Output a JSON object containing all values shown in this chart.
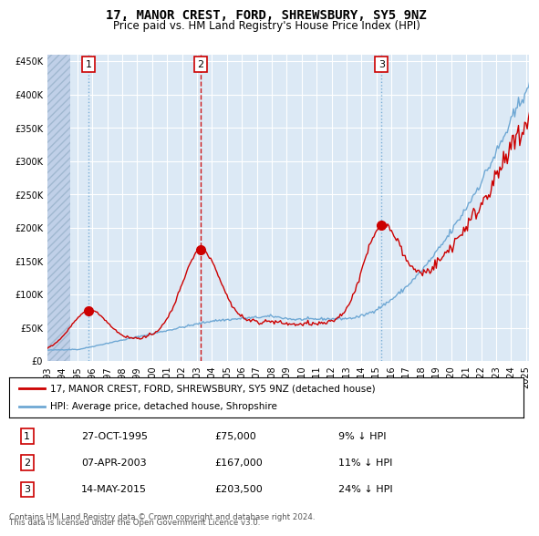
{
  "title": "17, MANOR CREST, FORD, SHREWSBURY, SY5 9NZ",
  "subtitle": "Price paid vs. HM Land Registry's House Price Index (HPI)",
  "sale_dates": [
    "1995-10-27",
    "2003-04-07",
    "2015-05-14"
  ],
  "sale_prices": [
    75000,
    167000,
    203500
  ],
  "sale_labels": [
    "1",
    "2",
    "3"
  ],
  "sale_pct": [
    "9%",
    "11%",
    "24%"
  ],
  "sale_date_strs": [
    "27-OCT-1995",
    "07-APR-2003",
    "14-MAY-2015"
  ],
  "legend_line1": "17, MANOR CREST, FORD, SHREWSBURY, SY5 9NZ (detached house)",
  "legend_line2": "HPI: Average price, detached house, Shropshire",
  "footer1": "Contains HM Land Registry data © Crown copyright and database right 2024.",
  "footer2": "This data is licensed under the Open Government Licence v3.0.",
  "hpi_color": "#6fa8d4",
  "price_color": "#cc0000",
  "vline_color_dashed": "#cc0000",
  "vline_color_dotted": "#6699cc",
  "dot_color": "#cc0000",
  "bg_color": "#dce9f5",
  "hatch_color": "#c0d0e8",
  "ylim": [
    0,
    460000
  ],
  "yticks": [
    0,
    50000,
    100000,
    150000,
    200000,
    250000,
    300000,
    350000,
    400000,
    450000
  ],
  "start_year": 1993,
  "end_year": 2025
}
